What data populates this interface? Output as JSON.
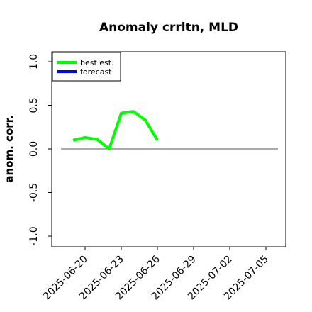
{
  "chart_data": {
    "type": "line",
    "title": "Anomaly crrltn, MLD",
    "ylabel": "anom. corr.",
    "xlabel": "",
    "ylim": [
      -1.0,
      1.0
    ],
    "yticks": [
      "-1.0",
      "-0.5",
      "0.0",
      "0.5",
      "1.0"
    ],
    "xticks": [
      "2025-06-20",
      "2025-06-23",
      "2025-06-26",
      "2025-06-29",
      "2025-07-02",
      "2025-07-05"
    ],
    "highlight_tick": "2025-06-26",
    "highlight_color": "#228B22",
    "legend": {
      "position": "top-left",
      "entries": [
        "best est.",
        "forecast"
      ]
    },
    "series": [
      {
        "name": "best est.",
        "color": "#00ff00",
        "x": [
          "2025-06-19",
          "2025-06-20",
          "2025-06-21",
          "2025-06-22",
          "2025-06-23",
          "2025-06-24",
          "2025-06-25",
          "2025-06-26"
        ],
        "y": [
          0.1,
          0.13,
          0.11,
          0.0,
          0.41,
          0.43,
          0.33,
          0.1
        ]
      },
      {
        "name": "forecast",
        "color": "#0000ff",
        "x": [],
        "y": []
      }
    ],
    "reference_line": {
      "y": 0.0,
      "x_start": "2025-06-18",
      "x_end": "2025-07-06",
      "color": "#555555"
    }
  }
}
